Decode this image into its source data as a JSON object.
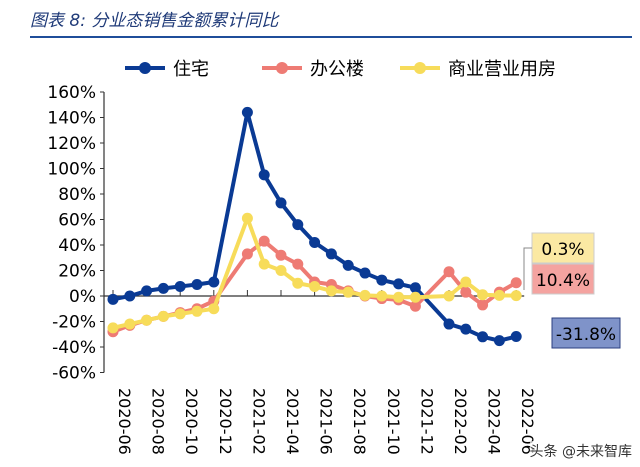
{
  "title": "图表 8:  分业态销售金额累计同比",
  "watermark": "头条 @未来智库",
  "chart_data": {
    "type": "line",
    "title": "图表 8:  分业态销售金额累计同比",
    "categories": [
      "2020-06",
      "2020-07",
      "2020-08",
      "2020-09",
      "2020-10",
      "2020-11",
      "2020-12",
      "2021-01",
      "2021-02",
      "2021-03",
      "2021-04",
      "2021-05",
      "2021-06",
      "2021-07",
      "2021-08",
      "2021-09",
      "2021-10",
      "2021-11",
      "2021-12",
      "2022-01",
      "2022-02",
      "2022-03",
      "2022-04",
      "2022-05",
      "2022-06"
    ],
    "tick_labels": [
      "2020-06",
      "2020-08",
      "2020-10",
      "2020-12",
      "2021-02",
      "2021-04",
      "2021-06",
      "2021-08",
      "2021-10",
      "2021-12",
      "2022-02",
      "2022-04",
      "2022-06"
    ],
    "y_ticks": [
      "160%",
      "140%",
      "120%",
      "100%",
      "80%",
      "60%",
      "40%",
      "20%",
      "0%",
      "-20%",
      "-40%",
      "-60%"
    ],
    "ylim": [
      -60,
      160
    ],
    "legend_position": "top",
    "series": [
      {
        "name": "住宅",
        "color": "#0a3a94",
        "values": [
          -2.6,
          0,
          4,
          6,
          7.5,
          9,
          11,
          null,
          144,
          95,
          73,
          56,
          42,
          33,
          24,
          18,
          12.5,
          9.5,
          6.5,
          null,
          -22,
          -26,
          -32,
          -35,
          -31.8
        ],
        "label": "-31.8%",
        "label_bg": "#7f93c9"
      },
      {
        "name": "办公楼",
        "color": "#ee7b74",
        "values": [
          -28,
          -23,
          -19,
          -16,
          -13,
          -10,
          -4,
          null,
          33,
          43,
          32,
          25,
          11,
          9,
          4,
          0,
          -2,
          -3,
          -8,
          null,
          19,
          3,
          -7,
          3,
          10.4
        ],
        "label": "10.4%",
        "label_bg": "#f4a3a0"
      },
      {
        "name": "商业营业用房",
        "color": "#f7dc5a",
        "values": [
          -25,
          -22,
          -19,
          -16,
          -14,
          -12,
          -10,
          null,
          61,
          25,
          20,
          10,
          7.5,
          4,
          3,
          0.5,
          0,
          -1,
          -1,
          null,
          0,
          11,
          1,
          0.5,
          0.3
        ],
        "label": "0.3%",
        "label_bg": "#fbe9a3"
      }
    ]
  }
}
